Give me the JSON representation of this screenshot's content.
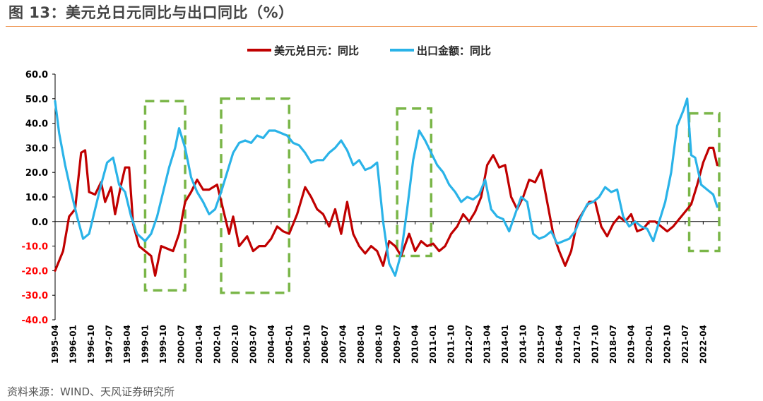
{
  "figure": {
    "title": "图 13：美元兑日元同比与出口同比（%）",
    "source": "资料来源：WIND、天风证券研究所"
  },
  "colors": {
    "usdjpy": "#c00000",
    "exports": "#2ab3e8",
    "box": "#7ab648",
    "axis_neg": "#ff0000",
    "title_rule": "#f0a062"
  },
  "chart_data": {
    "type": "line",
    "legend_position": "top-center",
    "ylim": [
      -40,
      60
    ],
    "y_ticks": [
      {
        "value": 60,
        "label": "60.0"
      },
      {
        "value": 50,
        "label": "50.0"
      },
      {
        "value": 40,
        "label": "40.0"
      },
      {
        "value": 30,
        "label": "30.0"
      },
      {
        "value": 20,
        "label": "20.0"
      },
      {
        "value": 10,
        "label": "10.0"
      },
      {
        "value": 0,
        "label": "0.0"
      },
      {
        "value": -10,
        "label": "-10.0"
      },
      {
        "value": -20,
        "label": "-20.0"
      },
      {
        "value": -30,
        "label": "-30.0"
      },
      {
        "value": -40,
        "label": "-40.0"
      }
    ],
    "x_range": [
      "1995-04",
      "2022-12"
    ],
    "x_ticks": [
      "1995-04",
      "1996-01",
      "1996-10",
      "1997-07",
      "1998-04",
      "1999-01",
      "1999-10",
      "2000-07",
      "2001-04",
      "2002-01",
      "2002-10",
      "2003-07",
      "2004-04",
      "2005-01",
      "2005-10",
      "2006-07",
      "2007-04",
      "2008-01",
      "2008-10",
      "2009-07",
      "2010-04",
      "2011-01",
      "2011-10",
      "2012-07",
      "2013-04",
      "2014-01",
      "2014-10",
      "2015-07",
      "2016-04",
      "2017-01",
      "2017-10",
      "2018-07",
      "2019-04",
      "2020-01",
      "2020-10",
      "2021-07",
      "2022-04"
    ],
    "series": [
      {
        "name": "美元兑日元：同比",
        "key": "usdjpy",
        "points": [
          [
            "1995-04",
            -20
          ],
          [
            "1995-08",
            -12
          ],
          [
            "1995-11",
            2
          ],
          [
            "1996-02",
            5
          ],
          [
            "1996-05",
            28
          ],
          [
            "1996-07",
            29
          ],
          [
            "1996-09",
            12
          ],
          [
            "1996-12",
            11
          ],
          [
            "1997-03",
            16
          ],
          [
            "1997-05",
            8
          ],
          [
            "1997-08",
            14
          ],
          [
            "1997-10",
            3
          ],
          [
            "1998-01",
            15
          ],
          [
            "1998-03",
            22
          ],
          [
            "1998-05",
            22
          ],
          [
            "1998-07",
            -1
          ],
          [
            "1998-10",
            -10
          ],
          [
            "1999-01",
            -12
          ],
          [
            "1999-04",
            -14
          ],
          [
            "1999-06",
            -22
          ],
          [
            "1999-09",
            -10
          ],
          [
            "1999-12",
            -11
          ],
          [
            "2000-03",
            -12
          ],
          [
            "2000-06",
            -5
          ],
          [
            "2000-09",
            8
          ],
          [
            "2000-12",
            12
          ],
          [
            "2001-03",
            17
          ],
          [
            "2001-06",
            13
          ],
          [
            "2001-09",
            13
          ],
          [
            "2002-01",
            15
          ],
          [
            "2002-04",
            5
          ],
          [
            "2002-07",
            -5
          ],
          [
            "2002-09",
            2
          ],
          [
            "2002-12",
            -10
          ],
          [
            "2003-04",
            -6
          ],
          [
            "2003-07",
            -12
          ],
          [
            "2003-10",
            -10
          ],
          [
            "2004-01",
            -10
          ],
          [
            "2004-04",
            -7
          ],
          [
            "2004-07",
            -2
          ],
          [
            "2004-10",
            -4
          ],
          [
            "2005-01",
            -5
          ],
          [
            "2005-05",
            3
          ],
          [
            "2005-09",
            14
          ],
          [
            "2005-12",
            10
          ],
          [
            "2006-03",
            5
          ],
          [
            "2006-06",
            3
          ],
          [
            "2006-09",
            -2
          ],
          [
            "2006-12",
            5
          ],
          [
            "2007-03",
            -5
          ],
          [
            "2007-06",
            8
          ],
          [
            "2007-09",
            -5
          ],
          [
            "2007-12",
            -10
          ],
          [
            "2008-03",
            -13
          ],
          [
            "2008-06",
            -10
          ],
          [
            "2008-09",
            -12
          ],
          [
            "2008-12",
            -18
          ],
          [
            "2009-03",
            -8
          ],
          [
            "2009-06",
            -10
          ],
          [
            "2009-09",
            -14
          ],
          [
            "2010-01",
            -5
          ],
          [
            "2010-04",
            -12
          ],
          [
            "2010-07",
            -8
          ],
          [
            "2010-10",
            -10
          ],
          [
            "2011-01",
            -9
          ],
          [
            "2011-04",
            -12
          ],
          [
            "2011-07",
            -10
          ],
          [
            "2011-10",
            -5
          ],
          [
            "2012-01",
            -2
          ],
          [
            "2012-04",
            3
          ],
          [
            "2012-07",
            0
          ],
          [
            "2012-10",
            4
          ],
          [
            "2013-01",
            10
          ],
          [
            "2013-04",
            23
          ],
          [
            "2013-07",
            27
          ],
          [
            "2013-10",
            22
          ],
          [
            "2014-01",
            23
          ],
          [
            "2014-04",
            10
          ],
          [
            "2014-07",
            5
          ],
          [
            "2014-10",
            10
          ],
          [
            "2015-01",
            17
          ],
          [
            "2015-04",
            16
          ],
          [
            "2015-07",
            21
          ],
          [
            "2015-10",
            8
          ],
          [
            "2016-01",
            -5
          ],
          [
            "2016-04",
            -12
          ],
          [
            "2016-07",
            -18
          ],
          [
            "2016-10",
            -12
          ],
          [
            "2017-01",
            0
          ],
          [
            "2017-04",
            4
          ],
          [
            "2017-07",
            8
          ],
          [
            "2017-10",
            8
          ],
          [
            "2018-01",
            -2
          ],
          [
            "2018-04",
            -6
          ],
          [
            "2018-07",
            -1
          ],
          [
            "2018-10",
            2
          ],
          [
            "2019-01",
            0
          ],
          [
            "2019-04",
            3
          ],
          [
            "2019-07",
            -4
          ],
          [
            "2019-10",
            -3
          ],
          [
            "2020-01",
            0
          ],
          [
            "2020-04",
            0
          ],
          [
            "2020-07",
            -2
          ],
          [
            "2020-10",
            -4
          ],
          [
            "2021-01",
            -2
          ],
          [
            "2021-04",
            1
          ],
          [
            "2021-07",
            4
          ],
          [
            "2021-10",
            7
          ],
          [
            "2022-01",
            15
          ],
          [
            "2022-04",
            24
          ],
          [
            "2022-07",
            30
          ],
          [
            "2022-09",
            30
          ],
          [
            "2022-11",
            23
          ]
        ]
      },
      {
        "name": "出口金额：同比",
        "key": "exports",
        "points": [
          [
            "1995-04",
            49
          ],
          [
            "1995-06",
            36
          ],
          [
            "1995-09",
            23
          ],
          [
            "1995-12",
            12
          ],
          [
            "1996-03",
            2
          ],
          [
            "1996-06",
            -7
          ],
          [
            "1996-09",
            -5
          ],
          [
            "1996-12",
            5
          ],
          [
            "1997-03",
            15
          ],
          [
            "1997-06",
            24
          ],
          [
            "1997-09",
            26
          ],
          [
            "1997-12",
            15
          ],
          [
            "1998-03",
            12
          ],
          [
            "1998-06",
            2
          ],
          [
            "1998-09",
            -5
          ],
          [
            "1999-01",
            -8
          ],
          [
            "1999-04",
            -5
          ],
          [
            "1999-07",
            2
          ],
          [
            "1999-10",
            12
          ],
          [
            "2000-01",
            22
          ],
          [
            "2000-04",
            30
          ],
          [
            "2000-06",
            38
          ],
          [
            "2000-09",
            30
          ],
          [
            "2000-12",
            18
          ],
          [
            "2001-03",
            12
          ],
          [
            "2001-06",
            8
          ],
          [
            "2001-09",
            3
          ],
          [
            "2001-12",
            5
          ],
          [
            "2002-03",
            12
          ],
          [
            "2002-06",
            20
          ],
          [
            "2002-09",
            28
          ],
          [
            "2002-12",
            32
          ],
          [
            "2003-03",
            33
          ],
          [
            "2003-06",
            32
          ],
          [
            "2003-09",
            35
          ],
          [
            "2003-12",
            34
          ],
          [
            "2004-03",
            37
          ],
          [
            "2004-06",
            37
          ],
          [
            "2004-09",
            36
          ],
          [
            "2004-12",
            35
          ],
          [
            "2005-03",
            32
          ],
          [
            "2005-06",
            31
          ],
          [
            "2005-09",
            28
          ],
          [
            "2005-12",
            24
          ],
          [
            "2006-03",
            25
          ],
          [
            "2006-06",
            25
          ],
          [
            "2006-09",
            28
          ],
          [
            "2006-12",
            30
          ],
          [
            "2007-03",
            33
          ],
          [
            "2007-06",
            29
          ],
          [
            "2007-09",
            23
          ],
          [
            "2007-12",
            25
          ],
          [
            "2008-03",
            21
          ],
          [
            "2008-06",
            22
          ],
          [
            "2008-09",
            24
          ],
          [
            "2008-12",
            0
          ],
          [
            "2009-03",
            -17
          ],
          [
            "2009-06",
            -22
          ],
          [
            "2009-09",
            -13
          ],
          [
            "2009-12",
            5
          ],
          [
            "2010-03",
            25
          ],
          [
            "2010-06",
            37
          ],
          [
            "2010-09",
            33
          ],
          [
            "2010-12",
            28
          ],
          [
            "2011-03",
            23
          ],
          [
            "2011-06",
            20
          ],
          [
            "2011-09",
            15
          ],
          [
            "2011-12",
            12
          ],
          [
            "2012-03",
            8
          ],
          [
            "2012-06",
            10
          ],
          [
            "2012-09",
            9
          ],
          [
            "2012-12",
            11
          ],
          [
            "2013-03",
            17
          ],
          [
            "2013-06",
            5
          ],
          [
            "2013-09",
            2
          ],
          [
            "2013-12",
            1
          ],
          [
            "2014-03",
            -4
          ],
          [
            "2014-06",
            3
          ],
          [
            "2014-09",
            10
          ],
          [
            "2014-12",
            8
          ],
          [
            "2015-03",
            -5
          ],
          [
            "2015-06",
            -7
          ],
          [
            "2015-09",
            -6
          ],
          [
            "2015-12",
            -4
          ],
          [
            "2016-03",
            -9
          ],
          [
            "2016-06",
            -8
          ],
          [
            "2016-09",
            -7
          ],
          [
            "2016-12",
            -4
          ],
          [
            "2017-03",
            2
          ],
          [
            "2017-06",
            7
          ],
          [
            "2017-09",
            8
          ],
          [
            "2017-12",
            10
          ],
          [
            "2018-03",
            14
          ],
          [
            "2018-06",
            12
          ],
          [
            "2018-09",
            13
          ],
          [
            "2018-12",
            2
          ],
          [
            "2019-03",
            -2
          ],
          [
            "2019-06",
            0
          ],
          [
            "2019-09",
            -2
          ],
          [
            "2019-12",
            -3
          ],
          [
            "2020-03",
            -8
          ],
          [
            "2020-06",
            0
          ],
          [
            "2020-09",
            8
          ],
          [
            "2020-12",
            20
          ],
          [
            "2021-03",
            39
          ],
          [
            "2021-06",
            45
          ],
          [
            "2021-08",
            50
          ],
          [
            "2021-10",
            27
          ],
          [
            "2021-12",
            26
          ],
          [
            "2022-03",
            15
          ],
          [
            "2022-06",
            13
          ],
          [
            "2022-09",
            11
          ],
          [
            "2022-11",
            6
          ]
        ]
      }
    ]
  },
  "highlight_boxes": [
    {
      "x0": "1999-01",
      "x1": "2000-09",
      "y0": -28,
      "y1": 49
    },
    {
      "x0": "2002-03",
      "x1": "2005-01",
      "y0": -29,
      "y1": 50
    },
    {
      "x0": "2009-07",
      "x1": "2010-12",
      "y0": -14,
      "y1": 46
    },
    {
      "x0": "2021-09",
      "x1": "2022-12",
      "y0": -12,
      "y1": 44
    }
  ]
}
